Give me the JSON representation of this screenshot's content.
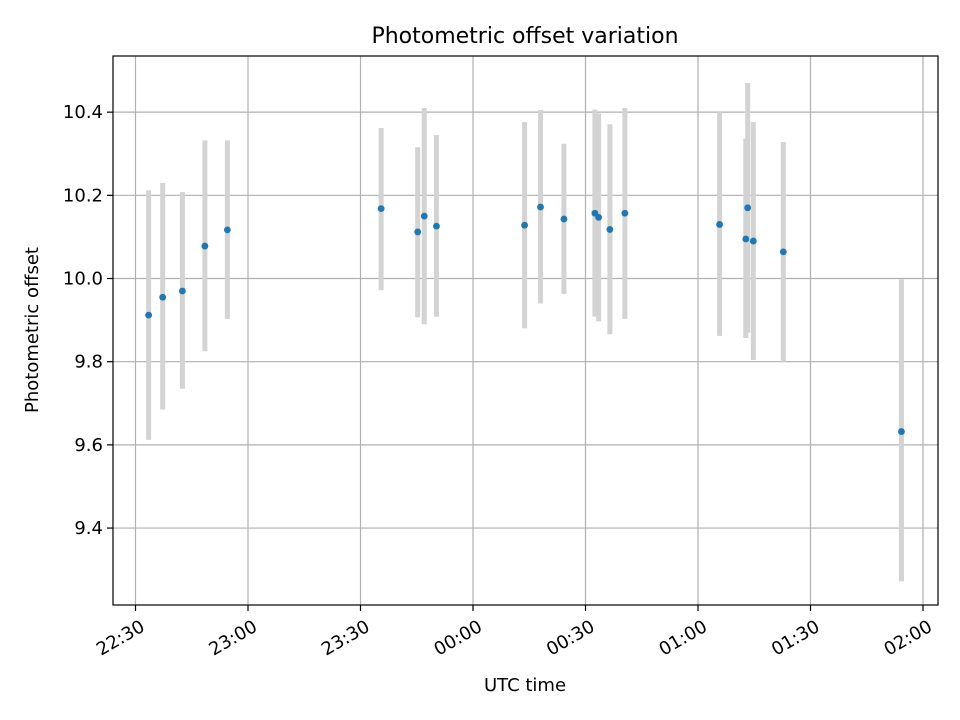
{
  "chart_data": {
    "type": "scatter",
    "title": "Photometric offset variation",
    "xlabel": "UTC time",
    "ylabel": "Photometric offset",
    "xlim": [
      "22:24",
      "02:04"
    ],
    "ylim": [
      9.215,
      10.535
    ],
    "xticks": [
      "22:30",
      "23:00",
      "23:30",
      "00:00",
      "00:30",
      "01:00",
      "01:30",
      "02:00"
    ],
    "yticks": [
      9.4,
      9.6,
      9.8,
      10.0,
      10.2,
      10.4
    ],
    "ytick_labels": [
      "9.4",
      "9.6",
      "9.8",
      "10.0",
      "10.2",
      "10.4"
    ],
    "grid": true,
    "colors": {
      "point": "#1f77b4",
      "errorbar": "#d3d3d3",
      "grid": "#b0b0b0"
    },
    "series": [
      {
        "points": [
          {
            "x": "22:33:30",
            "y": 9.912,
            "lo": 9.612,
            "hi": 10.212
          },
          {
            "x": "22:37:15",
            "y": 9.955,
            "lo": 9.685,
            "hi": 10.23
          },
          {
            "x": "22:42:30",
            "y": 9.97,
            "lo": 9.735,
            "hi": 10.208
          },
          {
            "x": "22:48:30",
            "y": 10.078,
            "lo": 9.825,
            "hi": 10.332
          },
          {
            "x": "22:54:30",
            "y": 10.117,
            "lo": 9.903,
            "hi": 10.332
          },
          {
            "x": "23:35:30",
            "y": 10.168,
            "lo": 9.972,
            "hi": 10.362
          },
          {
            "x": "23:45:15",
            "y": 10.112,
            "lo": 9.907,
            "hi": 10.316
          },
          {
            "x": "23:47:00",
            "y": 10.15,
            "lo": 9.89,
            "hi": 10.41
          },
          {
            "x": "23:50:15",
            "y": 10.126,
            "lo": 9.908,
            "hi": 10.345
          },
          {
            "x": "00:13:45",
            "y": 10.128,
            "lo": 9.88,
            "hi": 10.376
          },
          {
            "x": "00:18:00",
            "y": 10.172,
            "lo": 9.94,
            "hi": 10.405
          },
          {
            "x": "00:24:15",
            "y": 10.143,
            "lo": 9.963,
            "hi": 10.324
          },
          {
            "x": "00:32:30",
            "y": 10.157,
            "lo": 9.908,
            "hi": 10.406
          },
          {
            "x": "00:33:30",
            "y": 10.147,
            "lo": 9.897,
            "hi": 10.397
          },
          {
            "x": "00:36:30",
            "y": 10.118,
            "lo": 9.866,
            "hi": 10.371
          },
          {
            "x": "00:40:30",
            "y": 10.157,
            "lo": 9.903,
            "hi": 10.41
          },
          {
            "x": "01:05:45",
            "y": 10.13,
            "lo": 9.862,
            "hi": 10.4
          },
          {
            "x": "01:12:45",
            "y": 10.095,
            "lo": 9.857,
            "hi": 10.336
          },
          {
            "x": "01:13:15",
            "y": 10.17,
            "lo": 9.87,
            "hi": 10.47
          },
          {
            "x": "01:14:45",
            "y": 10.09,
            "lo": 9.804,
            "hi": 10.376
          },
          {
            "x": "01:22:45",
            "y": 10.064,
            "lo": 9.8,
            "hi": 10.328
          },
          {
            "x": "01:54:15",
            "y": 9.632,
            "lo": 9.272,
            "hi": 9.998
          }
        ]
      }
    ]
  }
}
